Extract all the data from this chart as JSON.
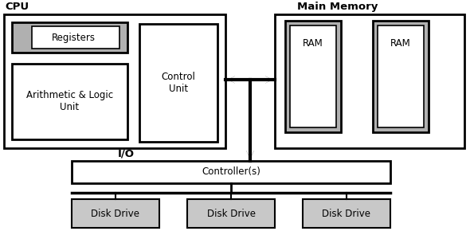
{
  "bg_color": "#ffffff",
  "box_edge_color": "#000000",
  "gray_fill": "#b0b0b0",
  "white_fill": "#ffffff",
  "light_gray_fill": "#c8c8c8",
  "cpu_label": "CPU",
  "main_memory_label": "Main Memory",
  "io_label": "I/O",
  "registers_label": "Registers",
  "alu_label": "Arithmetic & Logic\nUnit",
  "control_unit_label": "Control\nUnit",
  "ram_label": "RAM",
  "controller_label": "Controller(s)",
  "disk_drive_label": "Disk Drive",
  "font_size_small": 8.5,
  "font_size_title": 9.5
}
